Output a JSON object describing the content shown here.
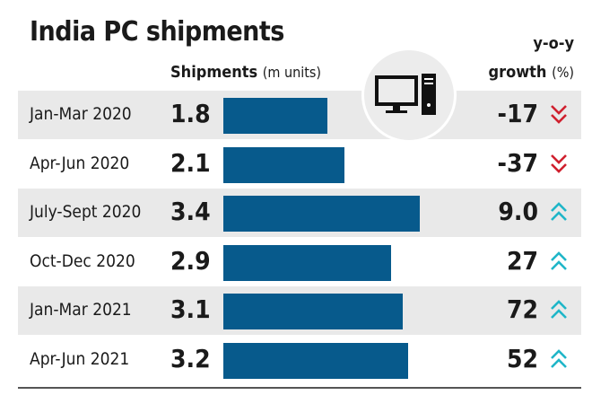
{
  "chart_data": {
    "type": "bar",
    "title": "India PC shipments",
    "value_header": "Shipments",
    "value_unit": "(m units)",
    "growth_header_line1": "y-o-y",
    "growth_header_line2": "growth",
    "growth_unit": "(%)",
    "categories": [
      "Jan-Mar 2020",
      "Apr-Jun 2020",
      "July-Sept 2020",
      "Oct-Dec 2020",
      "Jan-Mar 2021",
      "Apr-Jun 2021"
    ],
    "values": [
      "1.8",
      "2.1",
      "3.4",
      "2.9",
      "3.1",
      "3.2"
    ],
    "growth": [
      "-17",
      "-37",
      "9.0",
      "27",
      "72",
      "52"
    ],
    "growth_direction": [
      "down",
      "down",
      "up",
      "up",
      "up",
      "up"
    ],
    "bar_color": "#075a8c",
    "down_color": "#d0202e",
    "up_color": "#1fb6c8",
    "icon": "desktop-computer-icon"
  }
}
